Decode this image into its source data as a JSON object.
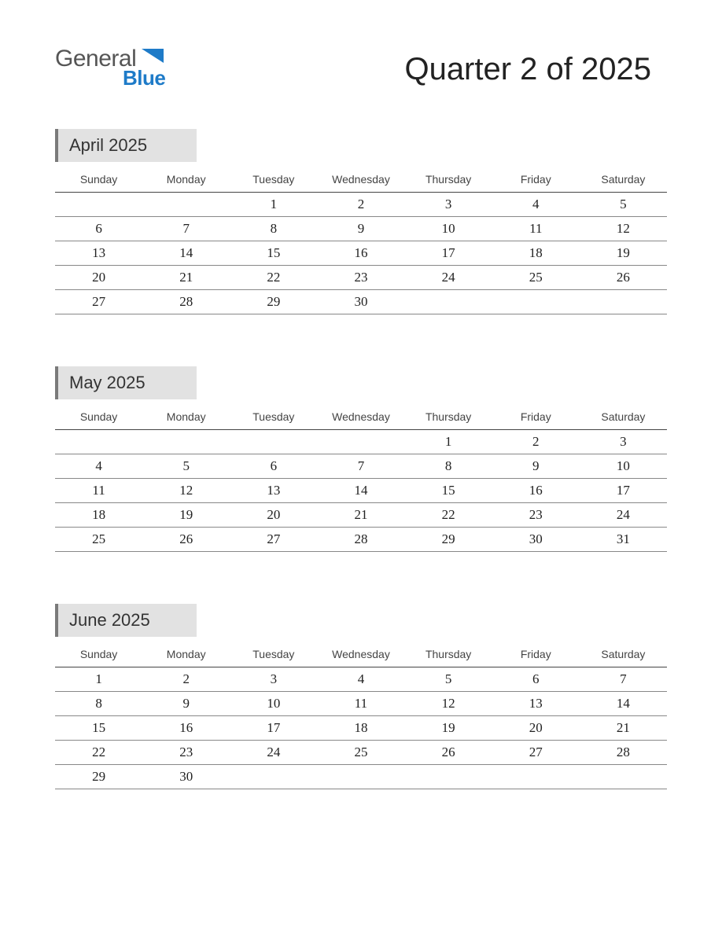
{
  "logo": {
    "text1": "General",
    "text2": "Blue",
    "color1": "#555555",
    "color2": "#1e7bc8",
    "tri_color": "#1e7bc8"
  },
  "title": "Quarter 2 of 2025",
  "day_headers": [
    "Sunday",
    "Monday",
    "Tuesday",
    "Wednesday",
    "Thursday",
    "Friday",
    "Saturday"
  ],
  "colors": {
    "background": "#ffffff",
    "month_tab_bg": "#e2e2e2",
    "month_tab_border": "#7a7a7a",
    "header_rule": "#444444",
    "row_rule": "#888888",
    "text": "#222222"
  },
  "fonts": {
    "title_size": 40,
    "month_title_size": 22,
    "day_header_size": 14,
    "date_size": 17,
    "date_family": "Georgia, serif"
  },
  "months": [
    {
      "title": "April 2025",
      "weeks": [
        [
          "",
          "",
          "1",
          "2",
          "3",
          "4",
          "5"
        ],
        [
          "6",
          "7",
          "8",
          "9",
          "10",
          "11",
          "12"
        ],
        [
          "13",
          "14",
          "15",
          "16",
          "17",
          "18",
          "19"
        ],
        [
          "20",
          "21",
          "22",
          "23",
          "24",
          "25",
          "26"
        ],
        [
          "27",
          "28",
          "29",
          "30",
          "",
          "",
          ""
        ]
      ]
    },
    {
      "title": "May 2025",
      "weeks": [
        [
          "",
          "",
          "",
          "",
          "1",
          "2",
          "3"
        ],
        [
          "4",
          "5",
          "6",
          "7",
          "8",
          "9",
          "10"
        ],
        [
          "11",
          "12",
          "13",
          "14",
          "15",
          "16",
          "17"
        ],
        [
          "18",
          "19",
          "20",
          "21",
          "22",
          "23",
          "24"
        ],
        [
          "25",
          "26",
          "27",
          "28",
          "29",
          "30",
          "31"
        ]
      ]
    },
    {
      "title": "June 2025",
      "weeks": [
        [
          "1",
          "2",
          "3",
          "4",
          "5",
          "6",
          "7"
        ],
        [
          "8",
          "9",
          "10",
          "11",
          "12",
          "13",
          "14"
        ],
        [
          "15",
          "16",
          "17",
          "18",
          "19",
          "20",
          "21"
        ],
        [
          "22",
          "23",
          "24",
          "25",
          "26",
          "27",
          "28"
        ],
        [
          "29",
          "30",
          "",
          "",
          "",
          "",
          ""
        ]
      ]
    }
  ]
}
